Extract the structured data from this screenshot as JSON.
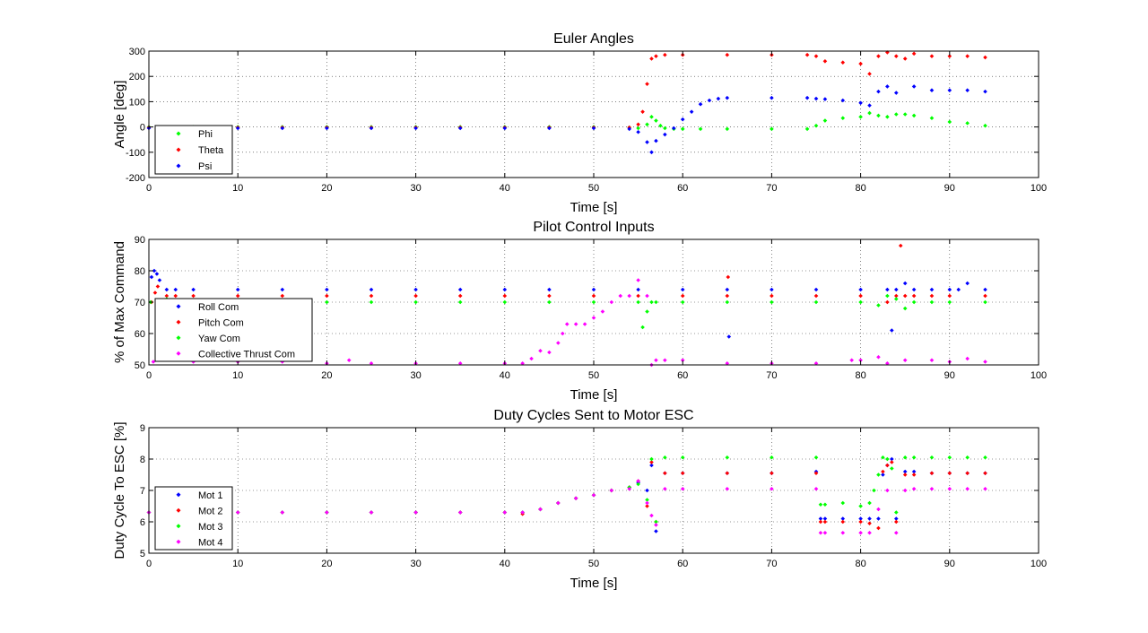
{
  "figure": {
    "background": "#ffffff"
  },
  "chart_data": [
    {
      "type": "scatter",
      "title": "Euler Angles",
      "xlabel": "Time [s]",
      "ylabel": "Angle [deg]",
      "xlim": [
        0,
        100
      ],
      "ylim": [
        -200,
        300
      ],
      "xticks": [
        0,
        10,
        20,
        30,
        40,
        50,
        60,
        70,
        80,
        90,
        100
      ],
      "yticks": [
        -200,
        -100,
        0,
        100,
        200,
        300
      ],
      "grid": true,
      "legend_position": "bottom-left",
      "series": [
        {
          "name": "Phi",
          "color": "#00ff00",
          "marker": "diamond",
          "x": [
            0,
            5,
            10,
            15,
            20,
            25,
            30,
            35,
            40,
            45,
            50,
            54,
            55,
            56,
            56.5,
            57,
            57.5,
            58,
            59,
            60,
            62,
            65,
            70,
            74,
            75,
            76,
            78,
            80,
            81,
            82,
            83,
            84,
            85,
            86,
            88,
            90,
            92,
            94
          ],
          "y": [
            0,
            0,
            0,
            0,
            0,
            0,
            0,
            0,
            0,
            0,
            0,
            -2,
            -5,
            10,
            40,
            25,
            5,
            -5,
            -8,
            -8,
            -8,
            -8,
            -8,
            -8,
            5,
            25,
            35,
            40,
            55,
            45,
            40,
            50,
            50,
            45,
            35,
            20,
            15,
            5
          ]
        },
        {
          "name": "Theta",
          "color": "#ff0000",
          "marker": "diamond",
          "x": [
            0,
            5,
            10,
            15,
            20,
            25,
            30,
            35,
            40,
            45,
            50,
            54,
            55,
            55.5,
            56,
            56.5,
            57,
            58,
            60,
            65,
            70,
            74,
            75,
            76,
            78,
            80,
            81,
            82,
            83,
            84,
            85,
            86,
            88,
            90,
            92,
            94
          ],
          "y": [
            -2,
            -2,
            -2,
            -2,
            -2,
            -2,
            -2,
            -2,
            -2,
            -2,
            -2,
            -2,
            10,
            60,
            170,
            270,
            280,
            285,
            285,
            285,
            285,
            285,
            280,
            260,
            255,
            250,
            210,
            280,
            295,
            280,
            270,
            290,
            280,
            280,
            280,
            275
          ]
        },
        {
          "name": "Psi",
          "color": "#0000ff",
          "marker": "diamond",
          "x": [
            0,
            5,
            10,
            15,
            20,
            25,
            30,
            35,
            40,
            45,
            50,
            54,
            55,
            56,
            56.5,
            57,
            58,
            59,
            60,
            61,
            62,
            63,
            64,
            65,
            70,
            74,
            75,
            76,
            78,
            80,
            81,
            82,
            83,
            84,
            86,
            88,
            90,
            92,
            94
          ],
          "y": [
            -5,
            -5,
            -5,
            -5,
            -5,
            -5,
            -5,
            -5,
            -5,
            -5,
            -5,
            -8,
            -20,
            -60,
            -100,
            -55,
            -30,
            -5,
            30,
            60,
            90,
            105,
            112,
            115,
            115,
            115,
            112,
            110,
            105,
            95,
            85,
            140,
            160,
            135,
            160,
            145,
            145,
            145,
            140
          ]
        }
      ]
    },
    {
      "type": "scatter",
      "title": "Pilot Control Inputs",
      "xlabel": "Time [s]",
      "ylabel": "% of Max Command",
      "xlim": [
        0,
        100
      ],
      "ylim": [
        50,
        90
      ],
      "xticks": [
        0,
        10,
        20,
        30,
        40,
        50,
        60,
        70,
        80,
        90,
        100
      ],
      "yticks": [
        50,
        60,
        70,
        80,
        90
      ],
      "grid": true,
      "legend_position": "bottom-left",
      "series": [
        {
          "name": "Roll Com",
          "color": "#0000ff",
          "marker": "diamond",
          "x": [
            0.3,
            0.6,
            0.9,
            1.2,
            2,
            3,
            5,
            10,
            15,
            20,
            25,
            30,
            35,
            40,
            45,
            50,
            55,
            60,
            65,
            65.2,
            70,
            75,
            80,
            83,
            83.5,
            84,
            85,
            86,
            88,
            90,
            91,
            92,
            94
          ],
          "y": [
            78,
            80,
            79,
            77,
            74,
            74,
            74,
            74,
            74,
            74,
            74,
            74,
            74,
            74,
            74,
            74,
            74,
            74,
            74,
            59,
            74,
            74,
            74,
            74,
            61,
            74,
            76,
            74,
            74,
            74,
            74,
            76,
            74
          ]
        },
        {
          "name": "Pitch Com",
          "color": "#ff0000",
          "marker": "diamond",
          "x": [
            0.3,
            0.7,
            1,
            2,
            3,
            5,
            10,
            15,
            20,
            25,
            30,
            35,
            40,
            45,
            50,
            55,
            60,
            65,
            65.1,
            70,
            75,
            80,
            83,
            84,
            84.5,
            85,
            86,
            88,
            90,
            94
          ],
          "y": [
            70,
            73,
            75,
            72,
            72,
            72,
            72,
            72,
            72,
            72,
            72,
            72,
            72,
            72,
            72,
            72,
            72,
            72,
            78,
            72,
            72,
            72,
            70,
            72,
            88,
            72,
            72,
            72,
            72,
            72
          ]
        },
        {
          "name": "Yaw Com",
          "color": "#00ff00",
          "marker": "diamond",
          "x": [
            0.2,
            1,
            2,
            5,
            10,
            15,
            20,
            25,
            30,
            35,
            40,
            45,
            50,
            55,
            55.5,
            56,
            56.5,
            57,
            60,
            65,
            70,
            75,
            80,
            82,
            83,
            84,
            85,
            86,
            88,
            90,
            94
          ],
          "y": [
            70,
            70,
            71,
            70,
            70,
            70,
            70,
            70,
            70,
            70,
            70,
            70,
            70,
            70,
            62,
            67,
            70,
            70,
            70,
            70,
            70,
            70,
            70,
            69,
            72,
            71,
            68,
            70,
            70,
            70,
            70
          ]
        },
        {
          "name": "Collective Thrust Com",
          "color": "#ff00ff",
          "marker": "diamond",
          "x": [
            0.5,
            5,
            10,
            15,
            20,
            22.5,
            25,
            30,
            35,
            40,
            42,
            43,
            44,
            45,
            46,
            46.5,
            47,
            48,
            49,
            50,
            51,
            52,
            53,
            54,
            55,
            56,
            56.5,
            57,
            58,
            60,
            65,
            70,
            75,
            79,
            80,
            82,
            83,
            85,
            88,
            90,
            92,
            94
          ],
          "y": [
            51,
            51,
            51,
            51,
            50.5,
            51.5,
            50.5,
            50.5,
            50.5,
            50.5,
            50.5,
            52,
            54.5,
            54,
            57,
            60,
            63,
            63,
            63,
            65,
            67,
            70,
            72,
            72,
            77,
            72,
            50,
            51.5,
            51.5,
            51.5,
            50.5,
            50.5,
            50.5,
            51.5,
            51.5,
            52.5,
            50.5,
            51.5,
            51.5,
            51,
            52,
            51
          ]
        }
      ]
    },
    {
      "type": "scatter",
      "title": "Duty Cycles Sent to Motor ESC",
      "xlabel": "Time [s]",
      "ylabel": "Duty Cycle To ESC [%]",
      "xlim": [
        0,
        100
      ],
      "ylim": [
        5,
        9
      ],
      "xticks": [
        0,
        10,
        20,
        30,
        40,
        50,
        60,
        70,
        80,
        90,
        100
      ],
      "yticks": [
        5,
        6,
        7,
        8,
        9
      ],
      "grid": true,
      "legend_position": "bottom-left",
      "series": [
        {
          "name": "Mot 1",
          "color": "#0000ff",
          "marker": "diamond",
          "x": [
            0,
            5,
            10,
            15,
            20,
            25,
            30,
            35,
            40,
            42,
            44,
            46,
            48,
            50,
            52,
            54,
            55,
            56,
            56.5,
            57,
            58,
            60,
            65,
            70,
            75,
            75.5,
            76,
            78,
            80,
            81,
            82,
            82.5,
            83,
            83.5,
            84,
            85,
            86,
            88,
            90,
            92,
            94
          ],
          "y": [
            6.3,
            6.3,
            6.3,
            6.3,
            6.3,
            6.3,
            6.3,
            6.3,
            6.3,
            6.3,
            6.4,
            6.6,
            6.75,
            6.85,
            7.0,
            7.1,
            7.25,
            7.0,
            7.8,
            5.7,
            7.55,
            7.55,
            7.55,
            7.55,
            7.6,
            6.1,
            6.1,
            6.1,
            6.1,
            6.1,
            6.1,
            7.5,
            7.8,
            8.0,
            6.1,
            7.6,
            7.6,
            7.55,
            7.55,
            7.55,
            7.55
          ]
        },
        {
          "name": "Mot 2",
          "color": "#ff0000",
          "marker": "diamond",
          "x": [
            0,
            5,
            10,
            15,
            20,
            25,
            30,
            35,
            40,
            42,
            44,
            46,
            48,
            50,
            52,
            54,
            55,
            56,
            56.5,
            57,
            58,
            60,
            65,
            70,
            75,
            75.5,
            76,
            78,
            80,
            81,
            82,
            82.5,
            83,
            83.5,
            84,
            85,
            86,
            88,
            90,
            92,
            94
          ],
          "y": [
            6.3,
            6.3,
            6.3,
            6.3,
            6.3,
            6.3,
            6.3,
            6.3,
            6.3,
            6.25,
            6.4,
            6.6,
            6.75,
            6.85,
            7.0,
            7.1,
            7.3,
            6.5,
            7.9,
            6.0,
            7.55,
            7.55,
            7.55,
            7.55,
            7.55,
            6.0,
            6.0,
            6.0,
            6.0,
            5.95,
            5.8,
            7.6,
            7.8,
            7.9,
            6.0,
            7.5,
            7.5,
            7.55,
            7.55,
            7.55,
            7.55
          ]
        },
        {
          "name": "Mot 3",
          "color": "#00ff00",
          "marker": "diamond",
          "x": [
            0,
            5,
            10,
            15,
            20,
            25,
            30,
            35,
            40,
            42,
            44,
            46,
            48,
            50,
            52,
            54,
            55,
            56,
            56.5,
            57,
            58,
            60,
            65,
            70,
            75,
            75.5,
            76,
            78,
            80,
            81,
            81.5,
            82,
            82.5,
            83,
            83.5,
            84,
            85,
            86,
            88,
            90,
            92,
            94
          ],
          "y": [
            6.3,
            6.3,
            6.3,
            6.3,
            6.3,
            6.3,
            6.3,
            6.3,
            6.3,
            6.3,
            6.4,
            6.6,
            6.75,
            6.85,
            7.0,
            7.1,
            7.2,
            6.7,
            8.0,
            6.0,
            8.05,
            8.05,
            8.05,
            8.05,
            8.05,
            6.55,
            6.55,
            6.6,
            6.5,
            6.6,
            7.0,
            7.5,
            8.05,
            8.0,
            7.7,
            6.3,
            8.05,
            8.05,
            8.05,
            8.05,
            8.05,
            8.05
          ]
        },
        {
          "name": "Mot 4",
          "color": "#ff00ff",
          "marker": "diamond",
          "x": [
            0,
            5,
            10,
            15,
            20,
            25,
            30,
            35,
            40,
            42,
            44,
            46,
            48,
            50,
            52,
            54,
            55,
            56,
            56.5,
            57,
            58,
            60,
            65,
            70,
            75,
            75.5,
            76,
            78,
            80,
            81,
            82,
            83,
            84,
            85,
            86,
            88,
            90,
            92,
            94
          ],
          "y": [
            6.3,
            6.3,
            6.3,
            6.3,
            6.3,
            6.3,
            6.3,
            6.3,
            6.3,
            6.3,
            6.4,
            6.6,
            6.75,
            6.85,
            7.0,
            7.05,
            7.3,
            6.6,
            6.2,
            5.9,
            7.05,
            7.05,
            7.05,
            7.05,
            7.05,
            5.65,
            5.65,
            5.65,
            5.65,
            5.65,
            6.4,
            7.0,
            5.65,
            7.0,
            7.05,
            7.05,
            7.05,
            7.05,
            7.05
          ]
        }
      ]
    }
  ]
}
